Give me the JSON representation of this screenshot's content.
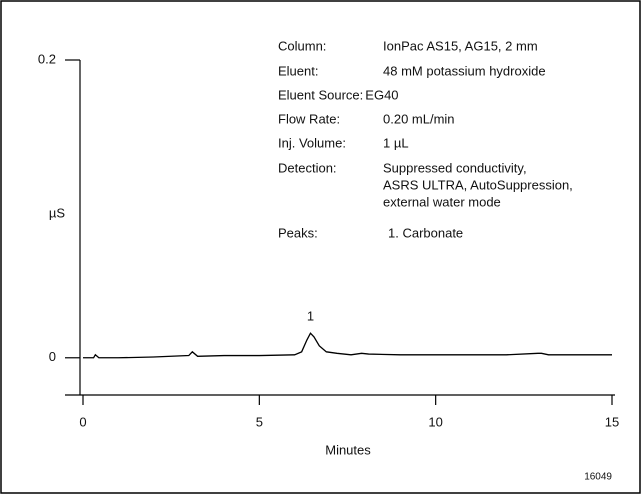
{
  "chart_data": {
    "type": "line",
    "x_label": "Minutes",
    "y_label": "µS",
    "figure_id": "16049",
    "xlim": [
      0,
      15
    ],
    "xticks": [
      0,
      5,
      10,
      15
    ],
    "ylim": [
      -0.025,
      0.2
    ],
    "yticks": [
      0,
      0.2
    ],
    "series": [
      {
        "color": "#000000",
        "x": [
          0,
          0.3,
          0.35,
          0.45,
          1,
          2,
          3,
          3.1,
          3.25,
          4,
          5,
          6,
          6.2,
          6.35,
          6.45,
          6.55,
          6.7,
          6.9,
          7.2,
          7.6,
          7.9,
          8.1,
          9,
          10,
          11,
          12,
          12.9,
          13,
          13.2,
          14,
          15
        ],
        "values": [
          0,
          0,
          0.002,
          0,
          0,
          0.0005,
          0.0015,
          0.004,
          0.001,
          0.0015,
          0.0015,
          0.002,
          0.004,
          0.012,
          0.0165,
          0.014,
          0.008,
          0.004,
          0.003,
          0.002,
          0.003,
          0.0025,
          0.002,
          0.002,
          0.002,
          0.002,
          0.003,
          0.003,
          0.002,
          0.002,
          0.002
        ]
      }
    ],
    "peak_labels": [
      {
        "label": "1",
        "x": 6.45
      }
    ],
    "info": [
      {
        "label": "Column:",
        "value": [
          "IonPac AS15, AG15, 2 mm"
        ]
      },
      {
        "label": "Eluent:",
        "value": [
          "48 mM potassium hydroxide"
        ]
      },
      {
        "label": "Eluent Source:",
        "value": [
          "EG40"
        ]
      },
      {
        "label": "Flow Rate:",
        "value": [
          "0.20 mL/min"
        ]
      },
      {
        "label": "Inj. Volume:",
        "value": [
          "1 µL"
        ]
      },
      {
        "label": "Detection:",
        "value": [
          "Suppressed conductivity,",
          "ASRS ULTRA, AutoSuppression,",
          "external water mode"
        ]
      },
      {
        "label": "Peaks:",
        "value": [
          "1. Carbonate"
        ]
      }
    ]
  }
}
